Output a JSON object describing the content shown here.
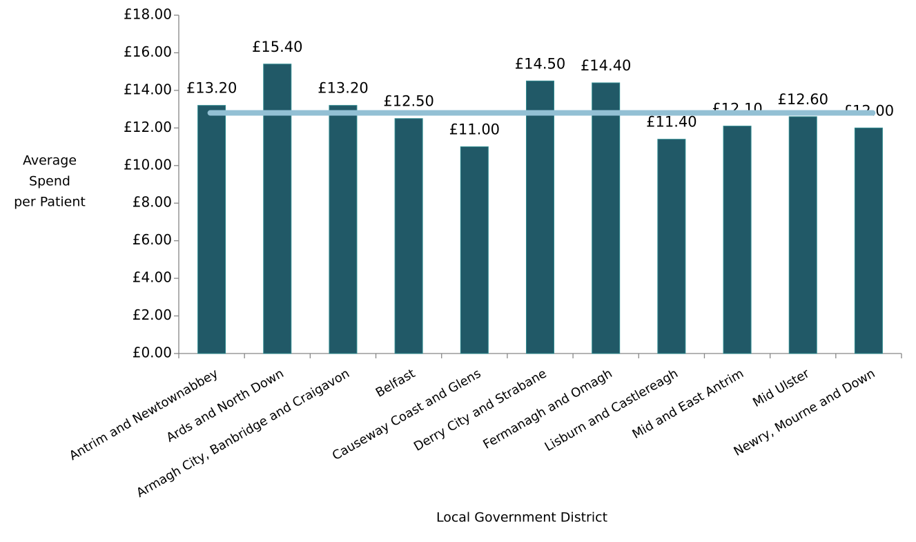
{
  "chart_data": {
    "type": "bar",
    "x_label": "Local Government District",
    "y_label": [
      "Average",
      "Spend",
      "per Patient"
    ],
    "categories": [
      "Antrim and Newtownabbey",
      "Ards and North Down",
      "Armagh City, Banbridge and Craigavon",
      "Belfast",
      "Causeway Coast and Glens",
      "Derry City and Strabane",
      "Fermanagh and Omagh",
      "Lisburn and Castlereagh",
      "Mid and East Antrim",
      "Mid Ulster",
      "Newry, Mourne and Down"
    ],
    "values": [
      13.2,
      15.4,
      13.2,
      12.5,
      11.0,
      14.5,
      14.4,
      11.4,
      12.1,
      12.6,
      12.0
    ],
    "value_labels": [
      "£13.20",
      "£15.40",
      "£13.20",
      "£12.50",
      "£11.00",
      "£14.50",
      "£14.40",
      "£11.40",
      "£12.10",
      "£12.60",
      "£12.00"
    ],
    "color": "#215967",
    "average_line": 12.8,
    "average_color": "#93c0d4",
    "ylim": [
      0,
      18
    ],
    "yticks": [
      {
        "value": 0,
        "label": "£0.00"
      },
      {
        "value": 2,
        "label": "£2.00"
      },
      {
        "value": 4,
        "label": "£4.00"
      },
      {
        "value": 6,
        "label": "£6.00"
      },
      {
        "value": 8,
        "label": "£8.00"
      },
      {
        "value": 10,
        "label": "£10.00"
      },
      {
        "value": 12,
        "label": "£12.00"
      },
      {
        "value": 14,
        "label": "£14.00"
      },
      {
        "value": 16,
        "label": "£16.00"
      },
      {
        "value": 18,
        "label": "£18.00"
      }
    ],
    "grid": false
  }
}
